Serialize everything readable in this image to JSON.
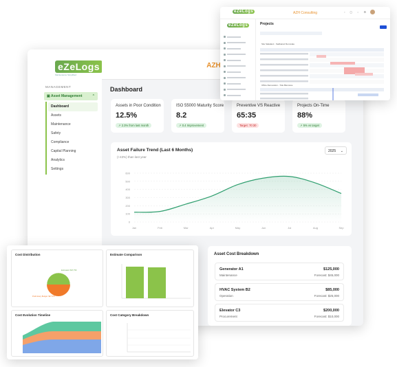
{
  "brand": {
    "logo": "eZeLogs",
    "tagline": "Maintenance Simplified"
  },
  "company": "AZH Consulting",
  "sidebar": {
    "section": "MANAGEMENT",
    "group": "Asset Management",
    "items": [
      "Dashboard",
      "Assets",
      "Maintenance",
      "Safety",
      "Compliance",
      "Capital Planning",
      "Analytics",
      "Settings"
    ]
  },
  "page_title": "Dashboard",
  "kpis": [
    {
      "title": "Assets in Poor Condition",
      "value": "12.5%",
      "badge": "2.3% from last month",
      "tone": "green"
    },
    {
      "title": "ISO 55000 Maturity Score",
      "value": "8.2",
      "badge": "0.4 Improvement",
      "tone": "green"
    },
    {
      "title": "Preventive VS Reactive",
      "value": "65:35",
      "badge": "Target: 70:30",
      "tone": "red"
    },
    {
      "title": "Projects On-Time",
      "value": "88%",
      "badge": "5% vs target",
      "tone": "green"
    }
  ],
  "trend": {
    "title": "Asset Failure Trend (Last 6 Months)",
    "subtitle": "(+43%) than last year",
    "year": "2025"
  },
  "chart_data": [
    {
      "type": "area",
      "title": "Asset Failure Trend (Last 6 Months)",
      "categories": [
        "Jan",
        "Feb",
        "Mar",
        "Apr",
        "May",
        "Jun",
        "Jul",
        "Aug",
        "Sep"
      ],
      "values": [
        12,
        13,
        22,
        32,
        46,
        54,
        56,
        48,
        35
      ],
      "ylim": [
        0,
        600
      ],
      "yticks": [
        0,
        100,
        200,
        300,
        400,
        500,
        600
      ],
      "color": "#2e9e6e",
      "grid": true
    }
  ],
  "cost_breakdown": {
    "title": "Asset Cost Breakdown",
    "items": [
      {
        "name": "Generator A1",
        "category": "Maintenance",
        "amount": "$125,000",
        "forecast": "Forecast: $45,000"
      },
      {
        "name": "HVAC System B2",
        "category": "Operation",
        "amount": "$85,000",
        "forecast": "Forecast: $25,000"
      },
      {
        "name": "Elevator C3",
        "category": "Procurement",
        "amount": "$200,000",
        "forecast": "Forecast: $10,000"
      }
    ]
  },
  "win2": {
    "company": "AZH Consulting",
    "title": "Projects",
    "gantt_a": "Site Sakalauz - Sadkanaz Renovate",
    "gantt_b": "Office Renovation - Tide Blencane"
  },
  "win3": {
    "panels": [
      "Cost Distribution",
      "Estimate Comparison",
      "Cost Evolution Timeline",
      "Cost Category Breakdown"
    ],
    "legend_a": "Estimated: $37,750",
    "legend_b": "Preliminary Budget: $27,973"
  },
  "colors": {
    "accent": "#e8922e",
    "green": "#6aa84f",
    "line": "#2e9e6e"
  }
}
